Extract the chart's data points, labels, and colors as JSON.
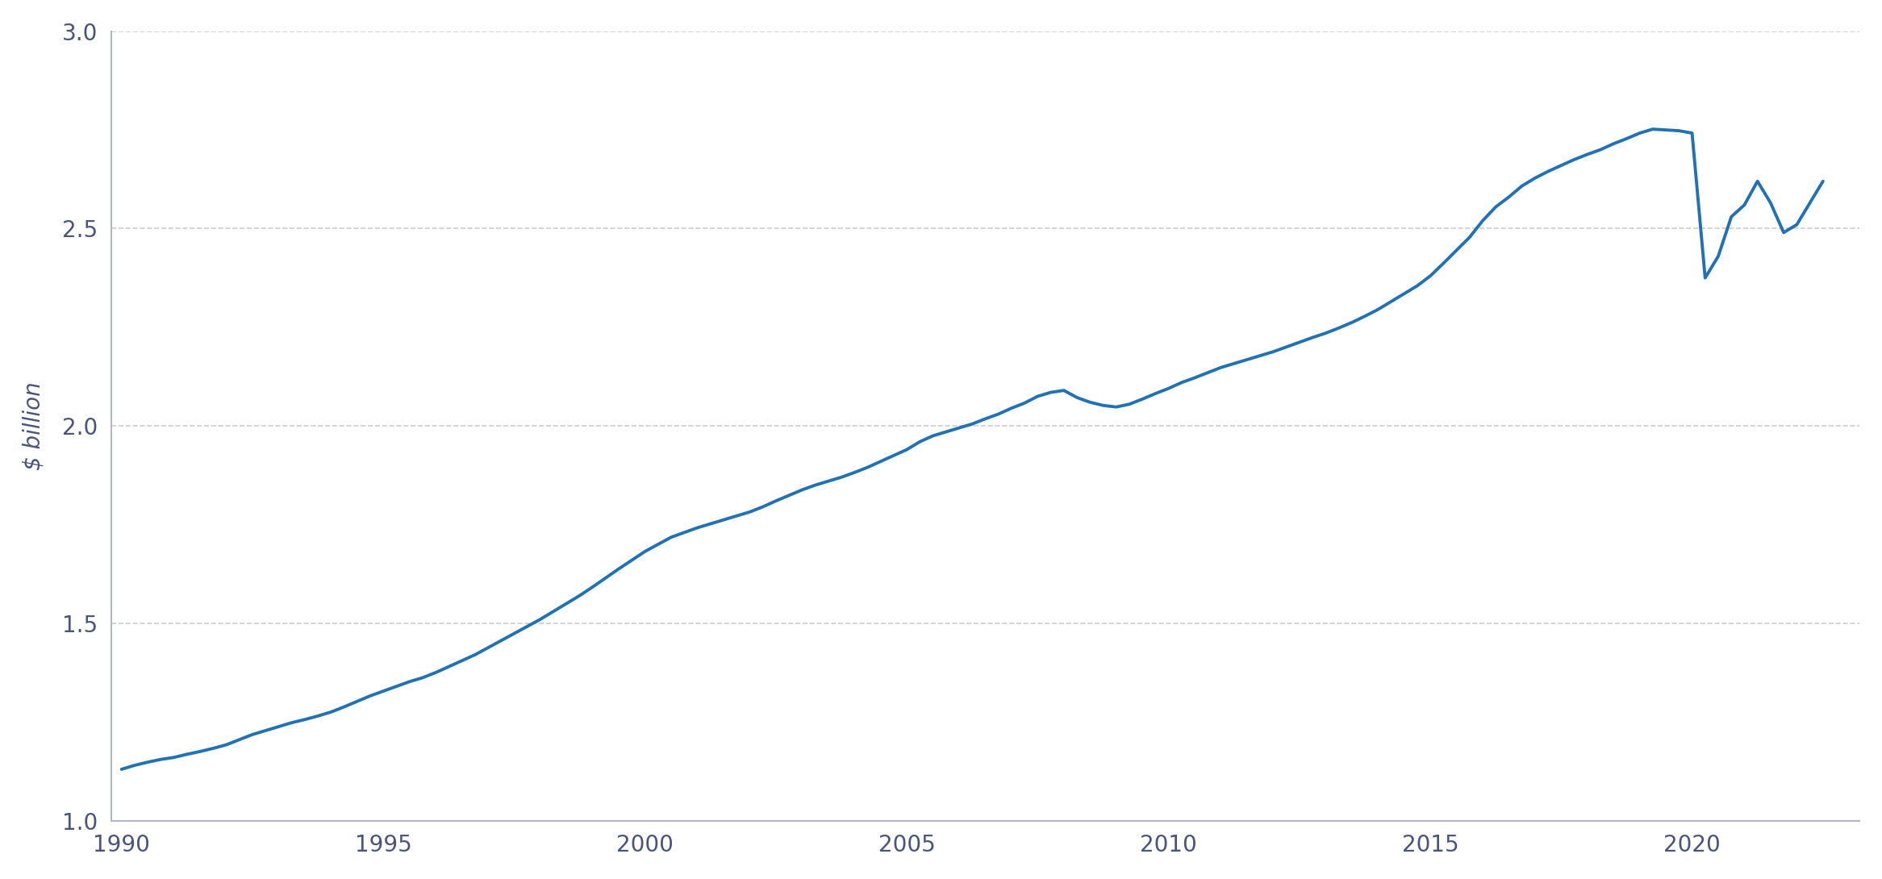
{
  "ylabel": "$ billion",
  "line_color": "#2271B3",
  "line_width": 2.8,
  "bg_color": "#ffffff",
  "grid_color": "#aaaaaa",
  "axis_color": "#b0b8c8",
  "tick_color": "#4a5578",
  "ylim": [
    1.0,
    3.0
  ],
  "yticks": [
    1.0,
    1.5,
    2.0,
    2.5,
    3.0
  ],
  "xlim_start": 1989.8,
  "xlim_end": 2023.2,
  "xtick_years": [
    1990,
    1995,
    2000,
    2005,
    2010,
    2015,
    2020
  ],
  "data": {
    "years": [
      1990.0,
      1990.25,
      1990.5,
      1990.75,
      1991.0,
      1991.25,
      1991.5,
      1991.75,
      1992.0,
      1992.25,
      1992.5,
      1992.75,
      1993.0,
      1993.25,
      1993.5,
      1993.75,
      1994.0,
      1994.25,
      1994.5,
      1994.75,
      1995.0,
      1995.25,
      1995.5,
      1995.75,
      1996.0,
      1996.25,
      1996.5,
      1996.75,
      1997.0,
      1997.25,
      1997.5,
      1997.75,
      1998.0,
      1998.25,
      1998.5,
      1998.75,
      1999.0,
      1999.25,
      1999.5,
      1999.75,
      2000.0,
      2000.25,
      2000.5,
      2000.75,
      2001.0,
      2001.25,
      2001.5,
      2001.75,
      2002.0,
      2002.25,
      2002.5,
      2002.75,
      2003.0,
      2003.25,
      2003.5,
      2003.75,
      2004.0,
      2004.25,
      2004.5,
      2004.75,
      2005.0,
      2005.25,
      2005.5,
      2005.75,
      2006.0,
      2006.25,
      2006.5,
      2006.75,
      2007.0,
      2007.25,
      2007.5,
      2007.75,
      2008.0,
      2008.25,
      2008.5,
      2008.75,
      2009.0,
      2009.25,
      2009.5,
      2009.75,
      2010.0,
      2010.25,
      2010.5,
      2010.75,
      2011.0,
      2011.25,
      2011.5,
      2011.75,
      2012.0,
      2012.25,
      2012.5,
      2012.75,
      2013.0,
      2013.25,
      2013.5,
      2013.75,
      2014.0,
      2014.25,
      2014.5,
      2014.75,
      2015.0,
      2015.25,
      2015.5,
      2015.75,
      2016.0,
      2016.25,
      2016.5,
      2016.75,
      2017.0,
      2017.25,
      2017.5,
      2017.75,
      2018.0,
      2018.25,
      2018.5,
      2018.75,
      2019.0,
      2019.25,
      2019.5,
      2019.75,
      2020.0,
      2020.25,
      2020.5,
      2020.75,
      2021.0,
      2021.25,
      2021.5,
      2021.75,
      2022.0,
      2022.25,
      2022.5
    ],
    "values": [
      1.13,
      1.14,
      1.148,
      1.155,
      1.16,
      1.168,
      1.175,
      1.183,
      1.192,
      1.205,
      1.218,
      1.228,
      1.238,
      1.248,
      1.256,
      1.265,
      1.275,
      1.288,
      1.302,
      1.316,
      1.328,
      1.34,
      1.352,
      1.362,
      1.375,
      1.39,
      1.405,
      1.42,
      1.438,
      1.456,
      1.474,
      1.492,
      1.51,
      1.53,
      1.55,
      1.57,
      1.592,
      1.615,
      1.638,
      1.66,
      1.682,
      1.7,
      1.718,
      1.73,
      1.742,
      1.752,
      1.762,
      1.772,
      1.782,
      1.795,
      1.81,
      1.824,
      1.838,
      1.85,
      1.86,
      1.87,
      1.882,
      1.895,
      1.91,
      1.925,
      1.94,
      1.96,
      1.975,
      1.985,
      1.995,
      2.005,
      2.018,
      2.03,
      2.045,
      2.058,
      2.075,
      2.085,
      2.09,
      2.072,
      2.06,
      2.052,
      2.048,
      2.055,
      2.068,
      2.082,
      2.095,
      2.11,
      2.122,
      2.135,
      2.148,
      2.158,
      2.168,
      2.178,
      2.188,
      2.2,
      2.212,
      2.224,
      2.235,
      2.248,
      2.262,
      2.278,
      2.295,
      2.315,
      2.335,
      2.355,
      2.38,
      2.412,
      2.445,
      2.478,
      2.52,
      2.555,
      2.58,
      2.608,
      2.628,
      2.645,
      2.66,
      2.675,
      2.688,
      2.7,
      2.715,
      2.728,
      2.742,
      2.752,
      2.75,
      2.748,
      2.742,
      2.375,
      2.43,
      2.53,
      2.56,
      2.62,
      2.565,
      2.49,
      2.51,
      2.565,
      2.62
    ]
  }
}
